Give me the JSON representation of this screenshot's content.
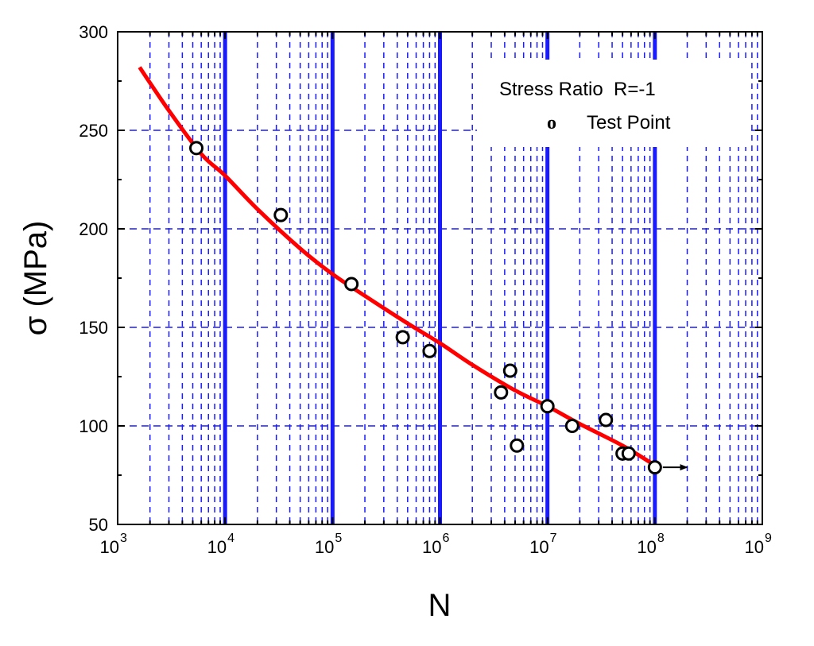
{
  "chart_data": {
    "type": "scatter",
    "xlabel": "N",
    "ylabel": "σ (MPa)",
    "x_scale": "log",
    "xlim": [
      1000,
      1000000000
    ],
    "ylim": [
      50,
      300
    ],
    "x_ticks": [
      {
        "base": "10",
        "exp": "3",
        "value": 1000
      },
      {
        "base": "10",
        "exp": "4",
        "value": 10000
      },
      {
        "base": "10",
        "exp": "5",
        "value": 100000
      },
      {
        "base": "10",
        "exp": "6",
        "value": 1000000
      },
      {
        "base": "10",
        "exp": "7",
        "value": 10000000
      },
      {
        "base": "10",
        "exp": "8",
        "value": 100000000
      },
      {
        "base": "10",
        "exp": "9",
        "value": 1000000000
      }
    ],
    "y_ticks": [
      "50",
      "100",
      "150",
      "200",
      "250",
      "300"
    ],
    "grid": true,
    "legend": {
      "position": "top-right",
      "title": "Stress Ratio  R=-1",
      "marker_glyph": "o",
      "entry": "Test Point"
    },
    "series": [
      {
        "kind": "points",
        "marker": "open-circle",
        "x": [
          5400,
          33000,
          150000,
          450000,
          800000,
          3700000,
          4500000,
          5200000,
          10000000,
          17000000,
          35000000,
          50000000,
          57000000,
          100000000
        ],
        "y": [
          241,
          207,
          172,
          145,
          138,
          117,
          128,
          90,
          110,
          100,
          103,
          86,
          86,
          79
        ]
      },
      {
        "kind": "curve",
        "color": "#ff0000",
        "x": [
          1600,
          3000,
          6000,
          10000,
          20000,
          50000,
          100000,
          200000,
          500000,
          1000000,
          2000000,
          5000000,
          10000000,
          20000000,
          50000000,
          100000000
        ],
        "y": [
          282,
          260,
          238,
          227,
          210,
          190,
          177,
          166,
          152,
          142,
          131,
          118,
          110,
          101,
          90,
          80
        ]
      }
    ],
    "annotation": {
      "type": "runout-arrow",
      "x_from": 100000000,
      "x_to": 200000000,
      "y": 79
    }
  }
}
